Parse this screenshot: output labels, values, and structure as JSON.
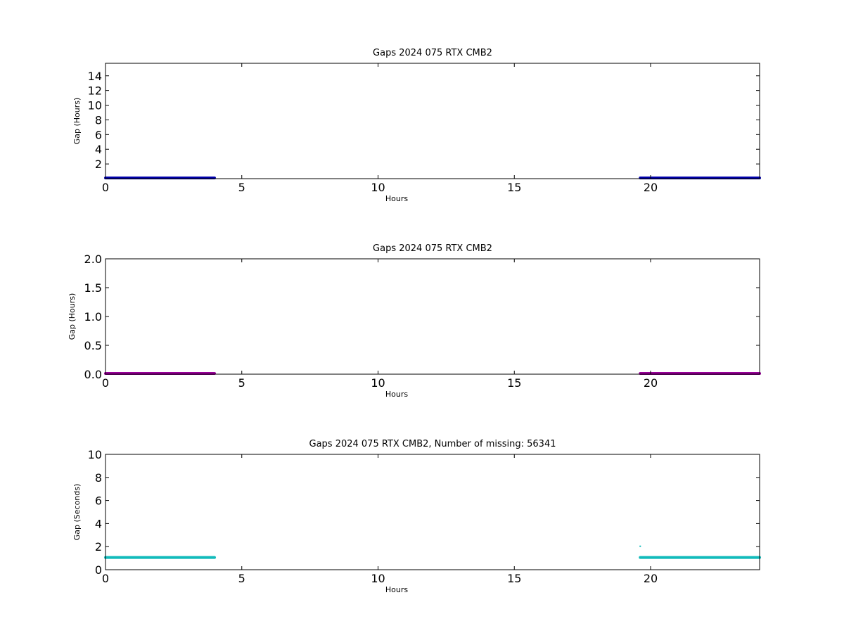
{
  "chart_data": [
    {
      "type": "scatter",
      "title": "Gaps 2024 075 RTX  CMB2",
      "xlabel": "Hours",
      "ylabel": "Gap (Hours)",
      "xlim": [
        0,
        24
      ],
      "ylim": [
        0,
        15.7
      ],
      "xticks": [
        0,
        5,
        10,
        15,
        20
      ],
      "yticks": [
        2,
        4,
        6,
        8,
        10,
        12,
        14
      ],
      "grid": false,
      "color": "#0000aa",
      "series": [
        {
          "segments": [
            {
              "x": [
                0,
                4.0
              ],
              "y": 0.0003
            },
            {
              "x": [
                19.62,
                24
              ],
              "y": 0.0003
            }
          ]
        }
      ]
    },
    {
      "type": "scatter",
      "title": "Gaps 2024 075 RTX  CMB2",
      "xlabel": "Hours",
      "ylabel": "Gap (Hours)",
      "xlim": [
        0,
        24
      ],
      "ylim": [
        0,
        2.0
      ],
      "xticks": [
        0,
        5,
        10,
        15,
        20
      ],
      "yticks": [
        "0.0",
        "0.5",
        "1.0",
        "1.5",
        "2.0"
      ],
      "grid": false,
      "color": "#990099",
      "series": [
        {
          "segments": [
            {
              "x": [
                0,
                4.0
              ],
              "y": 0.0003
            },
            {
              "x": [
                19.62,
                24
              ],
              "y": 0.0003
            }
          ]
        }
      ]
    },
    {
      "type": "scatter",
      "title": "Gaps 2024 075 RTX  CMB2, Number of missing: 56341",
      "xlabel": "Hours",
      "ylabel": "Gap (Seconds)",
      "xlim": [
        0,
        24
      ],
      "ylim": [
        0,
        10
      ],
      "xticks": [
        0,
        5,
        10,
        15,
        20
      ],
      "yticks": [
        0,
        2,
        4,
        6,
        8,
        10
      ],
      "grid": false,
      "color": "#11bbbb",
      "series": [
        {
          "segments": [
            {
              "x": [
                0,
                4.0
              ],
              "y": 1
            },
            {
              "x": [
                19.62,
                24
              ],
              "y": 1
            }
          ],
          "points": [
            {
              "x": 19.62,
              "y": 2
            }
          ]
        }
      ]
    }
  ]
}
